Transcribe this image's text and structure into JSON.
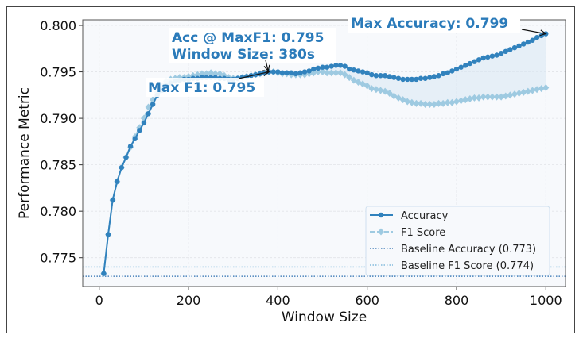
{
  "chart_data": {
    "type": "line",
    "title": "",
    "xlabel": "Window Size",
    "ylabel": "Performance Metric",
    "xlim": [
      -37,
      1044
    ],
    "ylim": [
      0.7719,
      0.8006
    ],
    "xticks": [
      0,
      200,
      400,
      600,
      800,
      1000
    ],
    "yticks": [
      0.775,
      0.78,
      0.785,
      0.79,
      0.795,
      0.8
    ],
    "ytick_labels": [
      "0.775",
      "0.780",
      "0.785",
      "0.790",
      "0.795",
      "0.800"
    ],
    "xtick_labels": [
      "0",
      "200",
      "400",
      "600",
      "800",
      "1000"
    ],
    "grid": true,
    "legend_placement": "lower-right",
    "x": [
      10,
      20,
      30,
      40,
      50,
      60,
      70,
      80,
      90,
      100,
      110,
      120,
      130,
      140,
      150,
      160,
      170,
      180,
      190,
      200,
      210,
      220,
      230,
      240,
      250,
      260,
      270,
      280,
      290,
      300,
      310,
      320,
      330,
      340,
      350,
      360,
      370,
      380,
      390,
      400,
      410,
      420,
      430,
      440,
      450,
      460,
      470,
      480,
      490,
      500,
      510,
      520,
      530,
      540,
      550,
      560,
      570,
      580,
      590,
      600,
      610,
      620,
      630,
      640,
      650,
      660,
      670,
      680,
      690,
      700,
      710,
      720,
      730,
      740,
      750,
      760,
      770,
      780,
      790,
      800,
      810,
      820,
      830,
      840,
      850,
      860,
      870,
      880,
      890,
      900,
      910,
      920,
      930,
      940,
      950,
      960,
      970,
      980,
      990,
      1000
    ],
    "series": [
      {
        "name": "Accuracy",
        "color": "#3182bd",
        "marker": "circle",
        "linestyle": "solid",
        "values": [
          0.7733,
          0.7775,
          0.7812,
          0.7832,
          0.7847,
          0.7858,
          0.787,
          0.7878,
          0.7887,
          0.7895,
          0.7905,
          0.7915,
          0.7925,
          0.793,
          0.7935,
          0.7938,
          0.794,
          0.7941,
          0.7942,
          0.7942,
          0.7943,
          0.7943,
          0.7944,
          0.7944,
          0.7944,
          0.7944,
          0.7943,
          0.7943,
          0.7942,
          0.7942,
          0.7943,
          0.7944,
          0.7945,
          0.7946,
          0.7947,
          0.7948,
          0.7949,
          0.795,
          0.795,
          0.795,
          0.7949,
          0.7949,
          0.7949,
          0.7948,
          0.7949,
          0.795,
          0.7951,
          0.7953,
          0.7954,
          0.7955,
          0.7955,
          0.7956,
          0.7957,
          0.7957,
          0.7956,
          0.7953,
          0.7952,
          0.7951,
          0.795,
          0.7949,
          0.7947,
          0.7946,
          0.7946,
          0.7946,
          0.7945,
          0.7944,
          0.7943,
          0.7942,
          0.7942,
          0.7942,
          0.7942,
          0.7943,
          0.7943,
          0.7944,
          0.7945,
          0.7946,
          0.7948,
          0.7949,
          0.7951,
          0.7953,
          0.7955,
          0.7957,
          0.7959,
          0.7961,
          0.7963,
          0.7965,
          0.7966,
          0.7967,
          0.7968,
          0.797,
          0.7972,
          0.7974,
          0.7976,
          0.7978,
          0.798,
          0.7982,
          0.7984,
          0.7987,
          0.7989,
          0.7991
        ]
      },
      {
        "name": "F1 Score",
        "color": "#9ecae1",
        "marker": "diamond",
        "linestyle": "dashed",
        "values": [
          0.7733,
          0.7775,
          0.7812,
          0.7832,
          0.7847,
          0.7858,
          0.7869,
          0.788,
          0.789,
          0.79,
          0.7912,
          0.792,
          0.7928,
          0.7935,
          0.794,
          0.7942,
          0.7943,
          0.7944,
          0.7944,
          0.7945,
          0.7946,
          0.7947,
          0.7948,
          0.7948,
          0.7949,
          0.7948,
          0.7948,
          0.7946,
          0.7944,
          0.7943,
          0.7943,
          0.7944,
          0.7945,
          0.7946,
          0.7947,
          0.7948,
          0.7949,
          0.795,
          0.795,
          0.7949,
          0.7948,
          0.7948,
          0.7947,
          0.7947,
          0.7947,
          0.7947,
          0.7948,
          0.7949,
          0.795,
          0.795,
          0.7949,
          0.7949,
          0.7949,
          0.7949,
          0.7947,
          0.7944,
          0.7941,
          0.7939,
          0.7937,
          0.7935,
          0.7932,
          0.7931,
          0.793,
          0.7929,
          0.7927,
          0.7924,
          0.7922,
          0.792,
          0.7918,
          0.7917,
          0.7916,
          0.7916,
          0.7915,
          0.7915,
          0.7915,
          0.7916,
          0.7916,
          0.7917,
          0.7917,
          0.7918,
          0.7919,
          0.792,
          0.7921,
          0.7922,
          0.7922,
          0.7923,
          0.7923,
          0.7923,
          0.7923,
          0.7923,
          0.7924,
          0.7925,
          0.7926,
          0.7927,
          0.7928,
          0.7929,
          0.793,
          0.7931,
          0.7932,
          0.7933
        ]
      }
    ],
    "baselines": [
      {
        "name": "Baseline Accuracy (0.773)",
        "value": 0.773,
        "color": "#2c6fb0"
      },
      {
        "name": "Baseline F1 Score (0.774)",
        "value": 0.774,
        "color": "#6baed6"
      }
    ],
    "fill_between": {
      "color": "#dbe7f3"
    },
    "background_color": "#f7f9fc",
    "annotations": [
      {
        "id": "max-f1",
        "text": "Max F1: 0.795",
        "target": [
          380,
          0.795
        ]
      },
      {
        "id": "acc-at-maxf1",
        "lines": [
          "Acc @ MaxF1: 0.795",
          "Window Size: 380s"
        ],
        "target": [
          380,
          0.795
        ]
      },
      {
        "id": "max-acc",
        "text": "Max Accuracy: 0.799",
        "target": [
          1000,
          0.7991
        ]
      }
    ]
  }
}
